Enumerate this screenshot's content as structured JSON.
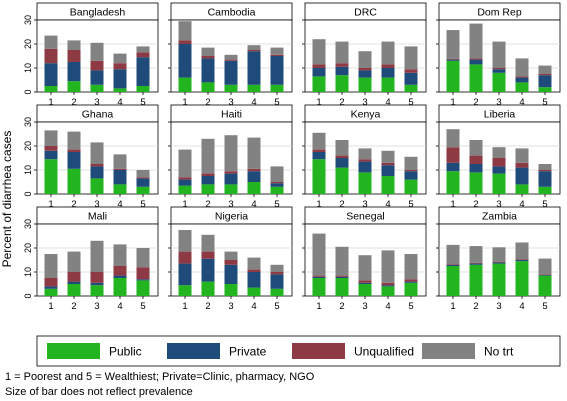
{
  "ylabel": "Percent of diarrhea cases",
  "notes": [
    "1 = Poorest and 5 = Wealthiest; Private=Clinic, pharmacy, NGO",
    "Size of bar does not reflect prevalence"
  ],
  "colors": {
    "Public": "#22b51f",
    "Private": "#1f4b7a",
    "Unqualified": "#8e3a45",
    "No trt": "#828282"
  },
  "chart_data": {
    "type": "bar",
    "stacked": true,
    "grid": true,
    "legend_position": "bottom",
    "ylim": [
      0,
      30
    ],
    "yticks": [
      0,
      10,
      20,
      30
    ],
    "categories": [
      "1",
      "2",
      "3",
      "4",
      "5"
    ],
    "legend": [
      "Public",
      "Private",
      "Unqualified",
      "No trt"
    ],
    "panels": [
      {
        "title": "Bangladesh",
        "series": [
          {
            "name": "Public",
            "values": [
              2.5,
              4.5,
              3,
              1.5,
              2.5
            ]
          },
          {
            "name": "Private",
            "values": [
              9.5,
              8,
              6,
              8,
              12
            ]
          },
          {
            "name": "Unqualified",
            "values": [
              6,
              5,
              4,
              2.5,
              2
            ]
          },
          {
            "name": "No trt",
            "values": [
              5.5,
              4,
              7.5,
              4,
              2.5
            ]
          }
        ]
      },
      {
        "title": "Cambodia",
        "series": [
          {
            "name": "Public",
            "values": [
              6,
              4,
              3,
              3,
              3
            ]
          },
          {
            "name": "Private",
            "values": [
              14,
              10,
              10,
              14,
              12
            ]
          },
          {
            "name": "Unqualified",
            "values": [
              1.5,
              1,
              0.5,
              0.5,
              0.5
            ]
          },
          {
            "name": "No trt",
            "values": [
              8,
              3.5,
              2,
              2,
              3
            ]
          }
        ]
      },
      {
        "title": "DRC",
        "series": [
          {
            "name": "Public",
            "values": [
              6.5,
              7,
              6,
              6,
              3
            ]
          },
          {
            "name": "Private",
            "values": [
              3.5,
              3.5,
              3,
              4,
              5
            ]
          },
          {
            "name": "Unqualified",
            "values": [
              1.5,
              1.5,
              1,
              1.5,
              1.5
            ]
          },
          {
            "name": "No trt",
            "values": [
              10.5,
              9,
              7,
              9.5,
              9.5
            ]
          }
        ]
      },
      {
        "title": "Dom Rep",
        "series": [
          {
            "name": "Public",
            "values": [
              13,
              11.5,
              8,
              4,
              2
            ]
          },
          {
            "name": "Private",
            "values": [
              0.5,
              2,
              1.5,
              2,
              5
            ]
          },
          {
            "name": "Unqualified",
            "values": [
              0.3,
              0.5,
              0.5,
              0.5,
              0.5
            ]
          },
          {
            "name": "No trt",
            "values": [
              12,
              14.5,
              11,
              7.5,
              3.5
            ]
          }
        ]
      },
      {
        "title": "Ghana",
        "series": [
          {
            "name": "Public",
            "values": [
              14.5,
              10.5,
              6.5,
              4,
              3
            ]
          },
          {
            "name": "Private",
            "values": [
              3.5,
              7,
              5,
              6,
              3.5
            ]
          },
          {
            "name": "Unqualified",
            "values": [
              2,
              1,
              1,
              0.5,
              0.5
            ]
          },
          {
            "name": "No trt",
            "values": [
              6.5,
              7.5,
              9,
              6,
              3
            ]
          }
        ]
      },
      {
        "title": "Haiti",
        "series": [
          {
            "name": "Public",
            "values": [
              3.5,
              4,
              4,
              5,
              3
            ]
          },
          {
            "name": "Private",
            "values": [
              2.5,
              3.5,
              4.5,
              4.5,
              1.5
            ]
          },
          {
            "name": "Unqualified",
            "values": [
              1,
              1,
              1,
              1,
              0.5
            ]
          },
          {
            "name": "No trt",
            "values": [
              11.5,
              14.5,
              15,
              13,
              6.5
            ]
          }
        ]
      },
      {
        "title": "Kenya",
        "series": [
          {
            "name": "Public",
            "values": [
              14.5,
              11,
              9,
              7.5,
              6
            ]
          },
          {
            "name": "Private",
            "values": [
              3,
              4,
              4.5,
              4.5,
              3.5
            ]
          },
          {
            "name": "Unqualified",
            "values": [
              1,
              1,
              1,
              1,
              0.5
            ]
          },
          {
            "name": "No trt",
            "values": [
              7,
              6.5,
              4.5,
              5,
              5.5
            ]
          }
        ]
      },
      {
        "title": "Liberia",
        "series": [
          {
            "name": "Public",
            "values": [
              9.5,
              9,
              8.5,
              4,
              3
            ]
          },
          {
            "name": "Private",
            "values": [
              3.5,
              3.5,
              3,
              7,
              6.5
            ]
          },
          {
            "name": "Unqualified",
            "values": [
              6.5,
              3.5,
              3.5,
              2,
              0.5
            ]
          },
          {
            "name": "No trt",
            "values": [
              7.5,
              6.5,
              4.5,
              6,
              2.5
            ]
          }
        ]
      },
      {
        "title": "Mali",
        "series": [
          {
            "name": "Public",
            "values": [
              3,
              5,
              4.5,
              7.5,
              6.5
            ]
          },
          {
            "name": "Private",
            "values": [
              1,
              1,
              1,
              1,
              0.5
            ]
          },
          {
            "name": "Unqualified",
            "values": [
              3.5,
              4,
              4.5,
              4,
              5
            ]
          },
          {
            "name": "No trt",
            "values": [
              10,
              8.5,
              13,
              9,
              8
            ]
          }
        ]
      },
      {
        "title": "Nigeria",
        "series": [
          {
            "name": "Public",
            "values": [
              4.5,
              6,
              5,
              3.5,
              3
            ]
          },
          {
            "name": "Private",
            "values": [
              9,
              9.5,
              8,
              6.5,
              6
            ]
          },
          {
            "name": "Unqualified",
            "values": [
              5,
              3,
              2,
              1,
              1
            ]
          },
          {
            "name": "No trt",
            "values": [
              9,
              7,
              3.5,
              5,
              3
            ]
          }
        ]
      },
      {
        "title": "Senegal",
        "series": [
          {
            "name": "Public",
            "values": [
              7.5,
              7.5,
              5,
              4,
              5.5
            ]
          },
          {
            "name": "Private",
            "values": [
              0.5,
              0.5,
              0.5,
              0.5,
              0.5
            ]
          },
          {
            "name": "Unqualified",
            "values": [
              0.5,
              0.5,
              1,
              1,
              1
            ]
          },
          {
            "name": "No trt",
            "values": [
              17.5,
              12,
              10.5,
              13.5,
              10.5
            ]
          }
        ]
      },
      {
        "title": "Zambia",
        "series": [
          {
            "name": "Public",
            "values": [
              12.5,
              13,
              13.5,
              14.5,
              8.5
            ]
          },
          {
            "name": "Private",
            "values": [
              0.5,
              0.5,
              0.5,
              0.5,
              0.3
            ]
          },
          {
            "name": "Unqualified",
            "values": [
              0.3,
              0.3,
              0.3,
              0.3,
              0.3
            ]
          },
          {
            "name": "No trt",
            "values": [
              8,
              7,
              6,
              7,
              6.5
            ]
          }
        ]
      }
    ]
  }
}
